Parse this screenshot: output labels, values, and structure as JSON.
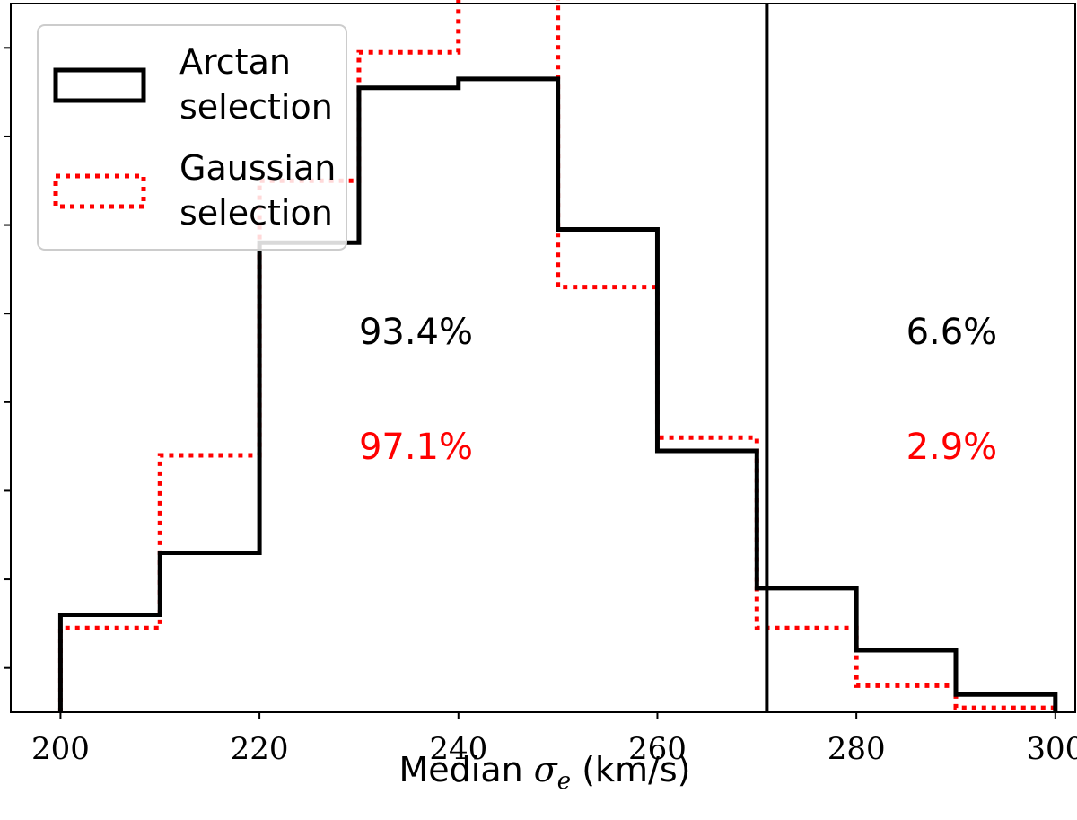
{
  "chart_data": {
    "type": "histogram",
    "xlabel": "Median σ_e (km/s)",
    "xlim": [
      195,
      302
    ],
    "ylim": [
      0,
      16
    ],
    "x_ticks": [
      200,
      220,
      240,
      260,
      280,
      300
    ],
    "y_tick_labels_shown": false,
    "bin_edges": [
      200,
      210,
      220,
      230,
      240,
      250,
      260,
      270,
      280,
      290,
      300
    ],
    "series": [
      {
        "name": "Arctan selection",
        "style": "solid",
        "color": "#000000",
        "values": [
          2.2,
          3.6,
          10.6,
          14.1,
          14.3,
          10.9,
          5.9,
          2.8,
          1.4,
          0.4
        ]
      },
      {
        "name": "Gaussian selection",
        "style": "dotted",
        "color": "#ff0000",
        "values": [
          1.9,
          5.8,
          12.0,
          14.9,
          16.3,
          9.6,
          6.2,
          1.9,
          0.6,
          0.1
        ]
      }
    ],
    "vertical_line": {
      "x": 271,
      "color": "#000000"
    },
    "annotations": [
      {
        "text": "93.4%",
        "x": 230,
        "y": 8.6,
        "color": "#000000"
      },
      {
        "text": "97.1%",
        "x": 230,
        "y": 6.0,
        "color": "#ff0000"
      },
      {
        "text": "6.6%",
        "x": 285,
        "y": 8.6,
        "color": "#000000"
      },
      {
        "text": "2.9%",
        "x": 285,
        "y": 6.0,
        "color": "#ff0000"
      }
    ],
    "legend": {
      "position": "top-left",
      "entries": [
        {
          "line1": "Arctan",
          "line2": "selection"
        },
        {
          "line1": "Gaussian",
          "line2": "selection"
        }
      ]
    }
  }
}
